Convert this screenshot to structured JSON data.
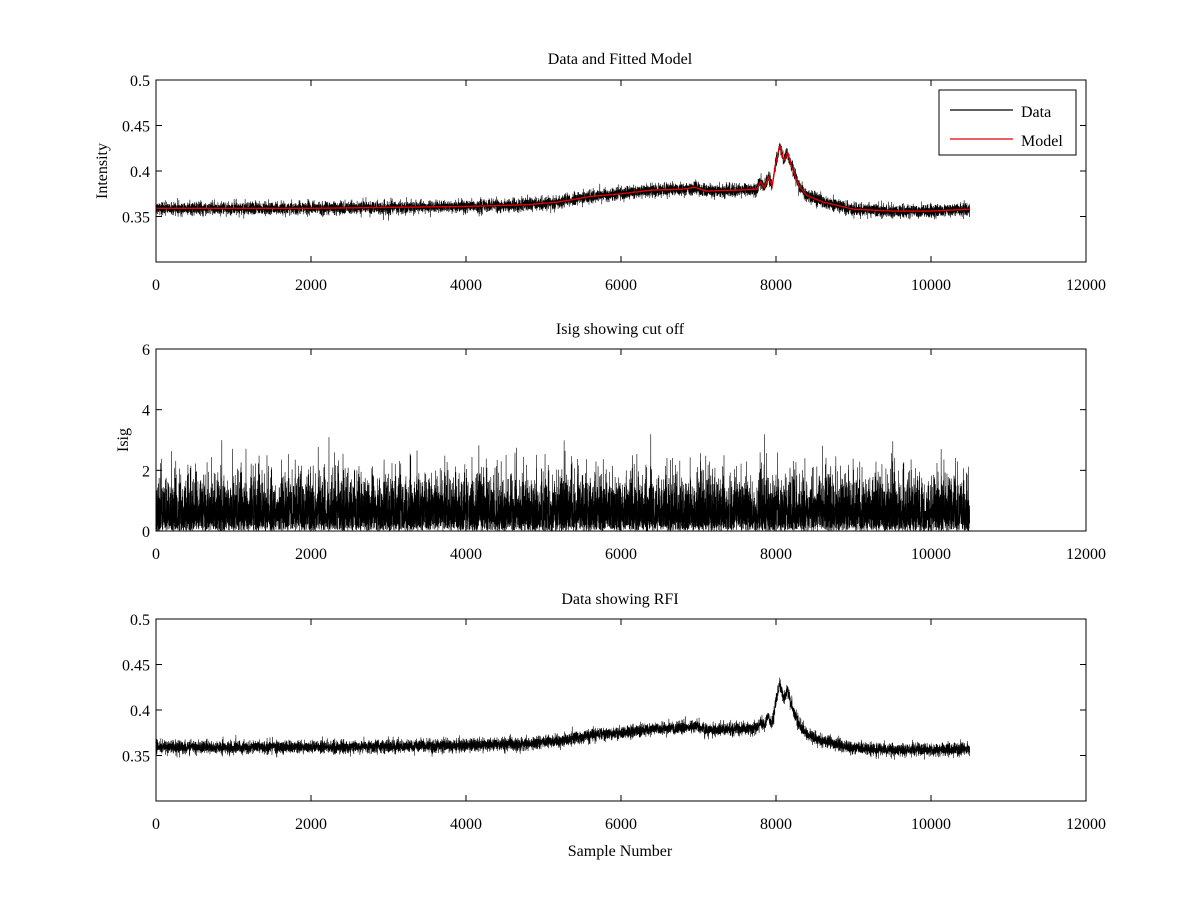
{
  "figure": {
    "sample_count": 10500
  },
  "colors": {
    "data": "#000000",
    "model": "#e00000",
    "axes": "#000000",
    "background": "#ffffff"
  },
  "chart_data": [
    {
      "type": "line",
      "title": "Data and Fitted Model",
      "xlabel": "",
      "ylabel": "Intensity",
      "xlim": [
        0,
        12000
      ],
      "ylim": [
        0.3,
        0.5
      ],
      "xticks": [
        0,
        2000,
        4000,
        6000,
        8000,
        10000,
        12000
      ],
      "xtick_labels": [
        "0",
        "2000",
        "4000",
        "6000",
        "8000",
        "10000",
        "12000"
      ],
      "yticks": [
        0.35,
        0.4,
        0.45,
        0.5
      ],
      "ytick_labels": [
        "0.35",
        "0.4",
        "0.45",
        "0.5"
      ],
      "legend": {
        "placement": "top-right",
        "entries": [
          "Data",
          "Model"
        ]
      },
      "series": [
        {
          "name": "Data",
          "kind": "noisy-baseline",
          "noise_sigma": 0.0035,
          "color": "#000000"
        },
        {
          "name": "Model",
          "kind": "baseline",
          "color": "#e00000"
        }
      ],
      "baseline_x": [
        0,
        1000,
        2000,
        3000,
        4000,
        4800,
        5200,
        5600,
        6000,
        6400,
        6800,
        6950,
        7100,
        7500,
        7750,
        7800,
        7850,
        7900,
        7950,
        8000,
        8050,
        8100,
        8150,
        8200,
        8300,
        8400,
        8600,
        8800,
        9000,
        9500,
        10000,
        10500
      ],
      "baseline_y": [
        0.359,
        0.359,
        0.359,
        0.36,
        0.361,
        0.363,
        0.366,
        0.372,
        0.375,
        0.379,
        0.38,
        0.382,
        0.378,
        0.379,
        0.38,
        0.388,
        0.382,
        0.393,
        0.384,
        0.41,
        0.428,
        0.412,
        0.42,
        0.405,
        0.383,
        0.373,
        0.366,
        0.362,
        0.358,
        0.356,
        0.356,
        0.358
      ]
    },
    {
      "type": "line",
      "title": "Isig showing cut off",
      "xlabel": "",
      "ylabel": "Isig",
      "xlim": [
        0,
        12000
      ],
      "ylim": [
        0,
        6
      ],
      "xticks": [
        0,
        2000,
        4000,
        6000,
        8000,
        10000,
        12000
      ],
      "xtick_labels": [
        "0",
        "2000",
        "4000",
        "6000",
        "8000",
        "10000",
        "12000"
      ],
      "yticks": [
        0,
        2,
        4,
        6
      ],
      "ytick_labels": [
        "0",
        "2",
        "4",
        "6"
      ],
      "series": [
        {
          "name": "Isig",
          "kind": "abs-normal",
          "scale": 0.85,
          "cap": 3.9,
          "color": "#000000"
        }
      ]
    },
    {
      "type": "line",
      "title": "Data showing RFI",
      "xlabel": "Sample Number",
      "ylabel": "",
      "xlim": [
        0,
        12000
      ],
      "ylim": [
        0.3,
        0.5
      ],
      "xticks": [
        0,
        2000,
        4000,
        6000,
        8000,
        10000,
        12000
      ],
      "xtick_labels": [
        "0",
        "2000",
        "4000",
        "6000",
        "8000",
        "10000",
        "12000"
      ],
      "yticks": [
        0.35,
        0.4,
        0.45,
        0.5
      ],
      "ytick_labels": [
        "0.35",
        "0.4",
        "0.45",
        "0.5"
      ],
      "series": [
        {
          "name": "Data",
          "kind": "noisy-baseline",
          "noise_sigma": 0.0035,
          "color": "#000000"
        }
      ],
      "baseline_x": [
        0,
        1000,
        2000,
        3000,
        4000,
        4800,
        5200,
        5600,
        6000,
        6400,
        6800,
        6950,
        7100,
        7500,
        7750,
        7800,
        7850,
        7900,
        7950,
        8000,
        8050,
        8100,
        8150,
        8200,
        8300,
        8400,
        8600,
        8800,
        9000,
        9500,
        10000,
        10500
      ],
      "baseline_y": [
        0.359,
        0.359,
        0.359,
        0.36,
        0.361,
        0.363,
        0.366,
        0.372,
        0.375,
        0.379,
        0.38,
        0.382,
        0.378,
        0.379,
        0.38,
        0.388,
        0.382,
        0.393,
        0.384,
        0.41,
        0.428,
        0.412,
        0.42,
        0.405,
        0.383,
        0.373,
        0.366,
        0.362,
        0.358,
        0.356,
        0.356,
        0.358
      ]
    }
  ]
}
